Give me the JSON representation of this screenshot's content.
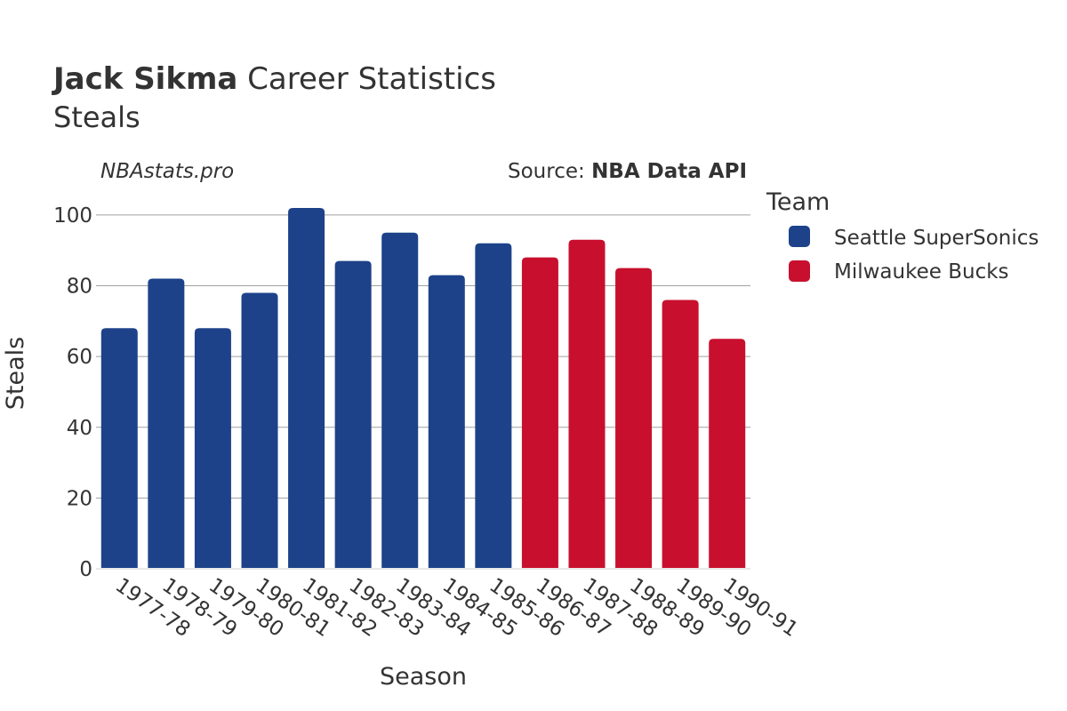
{
  "header": {
    "title_bold": "Jack Sikma",
    "title_rest": " Career Statistics",
    "subtitle": "Steals",
    "watermark": "NBAstats.pro",
    "source_prefix": "Source: ",
    "source_bold": "NBA Data API"
  },
  "legend": {
    "title": "Team",
    "items": [
      {
        "label": "Seattle SuperSonics",
        "color": "#1d428a"
      },
      {
        "label": "Milwaukee Bucks",
        "color": "#c8102e"
      }
    ]
  },
  "chart_data": {
    "type": "bar",
    "title": "Jack Sikma Career Statistics",
    "subtitle": "Steals",
    "xlabel": "Season",
    "ylabel": "Steals",
    "ylim": [
      0,
      105
    ],
    "yticks": [
      0,
      20,
      40,
      60,
      80,
      100
    ],
    "grid": true,
    "legend_position": "right",
    "categories": [
      "1977-78",
      "1978-79",
      "1979-80",
      "1980-81",
      "1981-82",
      "1982-83",
      "1983-84",
      "1984-85",
      "1985-86",
      "1986-87",
      "1987-88",
      "1988-89",
      "1989-90",
      "1990-91"
    ],
    "values": [
      68,
      82,
      68,
      78,
      102,
      87,
      95,
      83,
      92,
      88,
      93,
      85,
      76,
      65
    ],
    "teams": [
      "Seattle SuperSonics",
      "Seattle SuperSonics",
      "Seattle SuperSonics",
      "Seattle SuperSonics",
      "Seattle SuperSonics",
      "Seattle SuperSonics",
      "Seattle SuperSonics",
      "Seattle SuperSonics",
      "Seattle SuperSonics",
      "Milwaukee Bucks",
      "Milwaukee Bucks",
      "Milwaukee Bucks",
      "Milwaukee Bucks",
      "Milwaukee Bucks"
    ],
    "series": [
      {
        "name": "Seattle SuperSonics",
        "color": "#1d428a"
      },
      {
        "name": "Milwaukee Bucks",
        "color": "#c8102e"
      }
    ]
  }
}
